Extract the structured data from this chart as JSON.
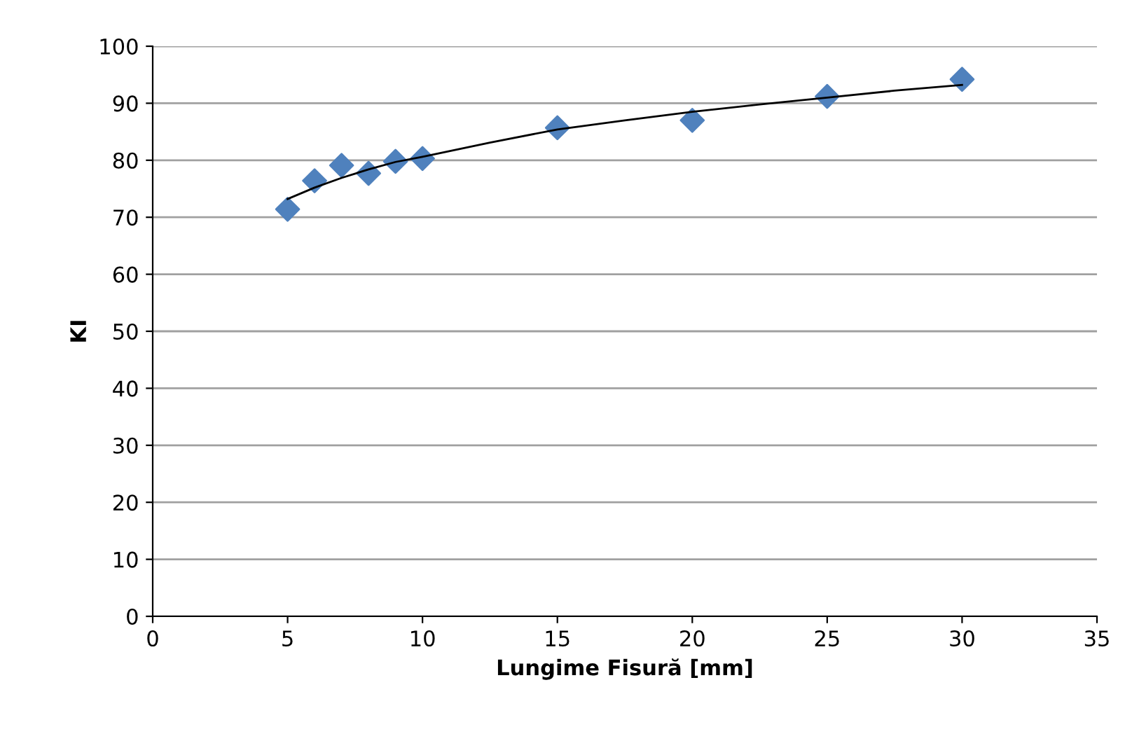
{
  "chart_data": {
    "type": "scatter",
    "xlabel": "Lungime Fisură [mm]",
    "ylabel": "KI",
    "xlim": [
      0,
      35
    ],
    "xticks": [
      0,
      5,
      10,
      15,
      20,
      25,
      30,
      35
    ],
    "ylim": [
      0,
      100
    ],
    "yticks": [
      0,
      10,
      20,
      30,
      40,
      50,
      60,
      70,
      80,
      90,
      100
    ],
    "grid": "y",
    "legend": false,
    "marker": "diamond",
    "series": [
      {
        "color": "#4f81bd",
        "x": [
          5,
          6,
          7,
          8,
          9,
          10,
          15,
          20,
          25,
          30
        ],
        "values": [
          71.4,
          76.4,
          79.1,
          77.7,
          79.8,
          80.3,
          85.7,
          87.0,
          91.2,
          94.2
        ]
      },
      {
        "type": "line",
        "color": "#000000",
        "marker": "none",
        "x": [
          5,
          6,
          7,
          8,
          9,
          10,
          12.5,
          15,
          17.5,
          20,
          22.5,
          25,
          27.5,
          30
        ],
        "values": [
          73.2,
          75.2,
          76.9,
          78.4,
          79.7,
          80.6,
          83.1,
          85.4,
          87.0,
          88.5,
          89.8,
          91.0,
          92.2,
          93.2
        ]
      }
    ]
  }
}
